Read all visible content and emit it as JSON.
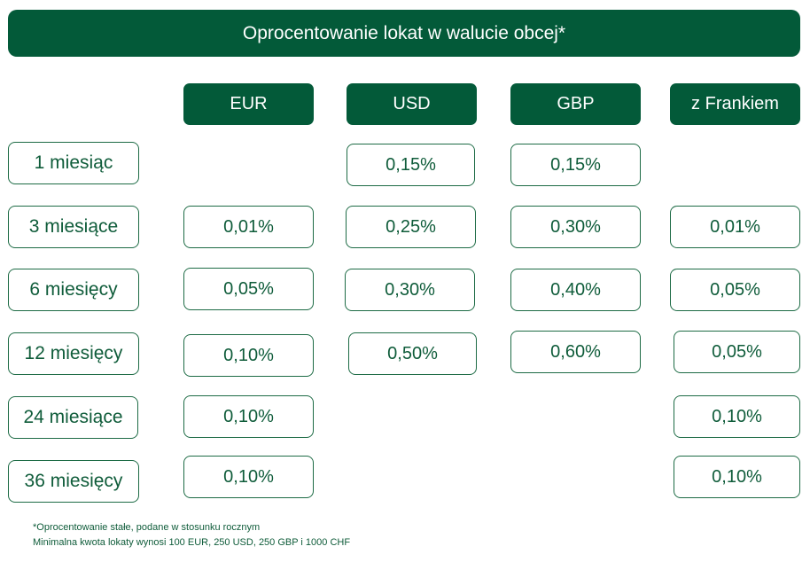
{
  "title": "Oprocentowanie lokat w walucie obcej*",
  "columns": [
    "EUR",
    "USD",
    "GBP",
    "z Frankiem"
  ],
  "rows": [
    {
      "label": "1 miesiąc",
      "values": [
        "",
        "0,15%",
        "0,15%",
        ""
      ]
    },
    {
      "label": "3 miesiące",
      "values": [
        "0,01%",
        "0,25%",
        "0,30%",
        "0,01%"
      ]
    },
    {
      "label": "6 miesięcy",
      "values": [
        "0,05%",
        "0,30%",
        "0,40%",
        "0,05%"
      ]
    },
    {
      "label": "12 miesięcy",
      "values": [
        "0,10%",
        "0,50%",
        "0,60%",
        "0,05%"
      ]
    },
    {
      "label": "24 miesiące",
      "values": [
        "0,10%",
        "",
        "",
        "0,10%"
      ]
    },
    {
      "label": "36 miesięcy",
      "values": [
        "0,10%",
        "",
        "",
        "0,10%"
      ]
    }
  ],
  "footnotes": [
    "*Oprocentowanie stałe, podane w stosunku rocznym",
    "Minimalna kwota lokaty wynosi 100 EUR, 250 USD, 250 GBP i 1000 CHF"
  ],
  "colors": {
    "brand_green": "#035a39",
    "text_green": "#0f5c3a",
    "border_green": "#1d6b45"
  }
}
